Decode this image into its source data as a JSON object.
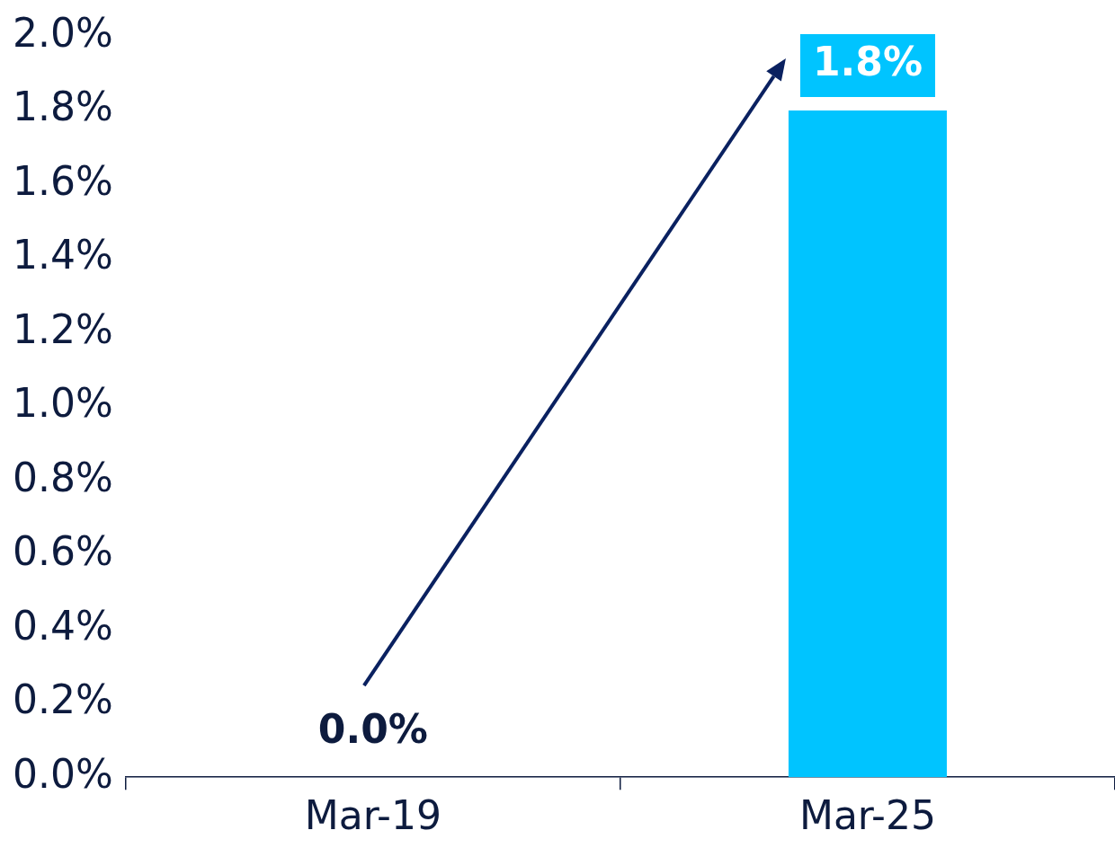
{
  "chart_data": {
    "type": "bar",
    "categories": [
      "Mar-19",
      "Mar-25"
    ],
    "values": [
      0.0,
      1.8
    ],
    "color": "#00c4ff",
    "value_labels": [
      "0.0%",
      "1.8%"
    ],
    "ylim": [
      0,
      2.0
    ],
    "yticks": [
      {
        "value": 0,
        "label": "0.0%"
      },
      {
        "value": 0.2,
        "label": "0.2%"
      },
      {
        "value": 0.4,
        "label": "0.4%"
      },
      {
        "value": 0.6,
        "label": "0.6%"
      },
      {
        "value": 0.8,
        "label": "0.8%"
      },
      {
        "value": 1.0,
        "label": "1.0%"
      },
      {
        "value": 1.2,
        "label": "1.2%"
      },
      {
        "value": 1.4,
        "label": "1.4%"
      },
      {
        "value": 1.6,
        "label": "1.6%"
      },
      {
        "value": 1.8,
        "label": "1.8%"
      },
      {
        "value": 2.0,
        "label": "2.0%"
      }
    ],
    "grid": false,
    "legend": false
  }
}
